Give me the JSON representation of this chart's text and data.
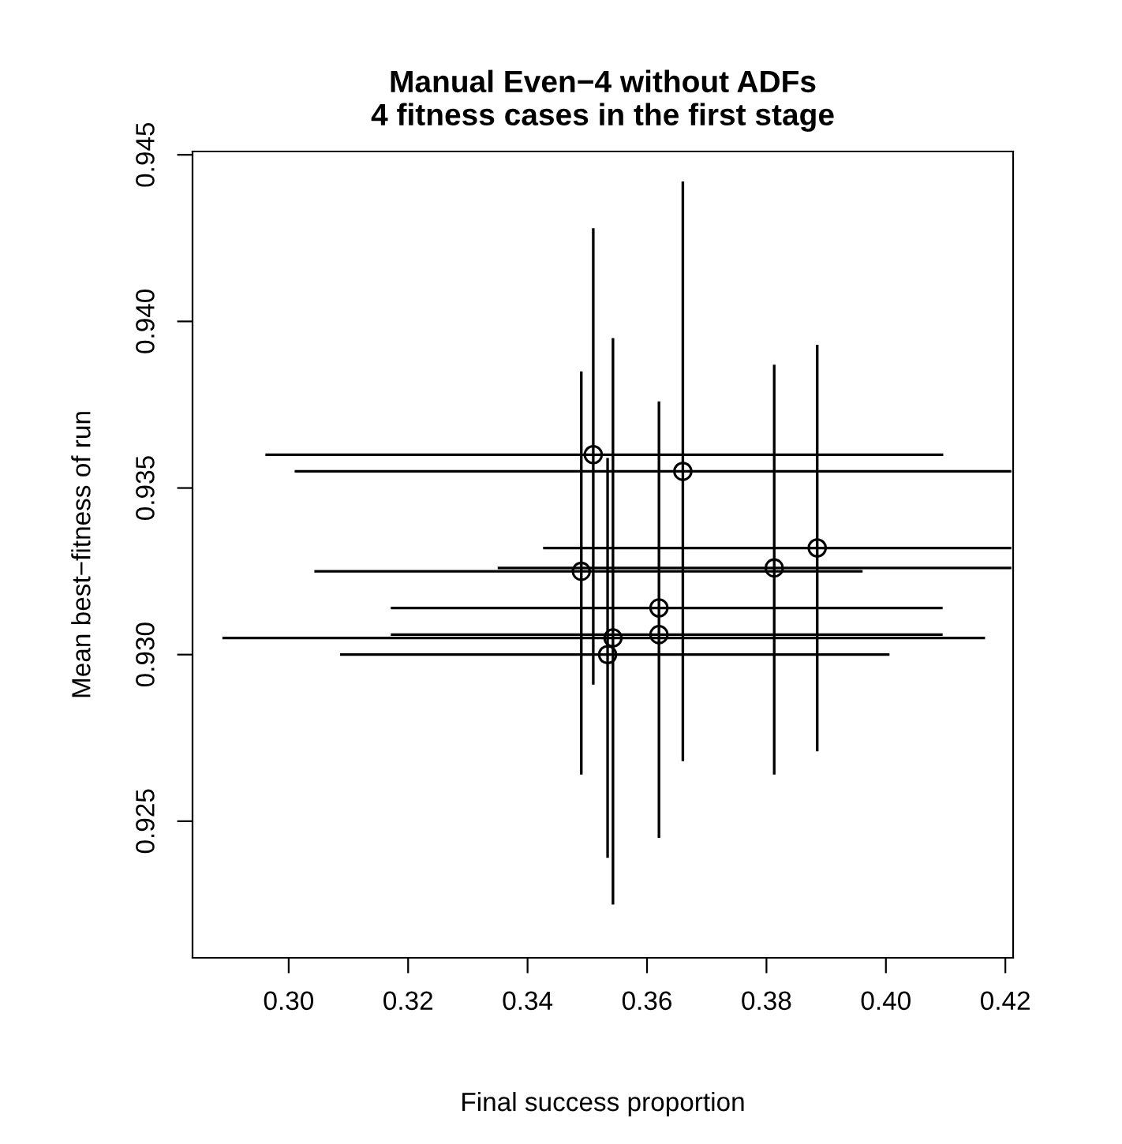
{
  "chart_data": {
    "type": "scatter",
    "title": "Manual Even−4 without ADFs\n4 fitness cases in the first stage",
    "xlabel": "Final success proportion",
    "ylabel": "Mean best−fitness of run",
    "x": [
      0.351,
      0.366,
      0.349,
      0.362,
      0.362,
      0.3543,
      0.3534,
      0.3813,
      0.3885
    ],
    "series": [
      {
        "color": "#000000",
        "values": [
          0.936,
          0.9355,
          0.9325,
          0.9314,
          0.9306,
          0.9305,
          0.93,
          0.9326,
          0.9332
        ],
        "errors": [
          [
            0.9291,
            0.9428
          ],
          [
            0.9268,
            0.9442
          ],
          [
            0.9264,
            0.9385
          ],
          [
            0.9245,
            0.9376
          ],
          null,
          [
            0.9225,
            0.9395
          ],
          [
            0.9239,
            0.9359
          ],
          [
            0.9264,
            0.9387
          ],
          [
            0.9271,
            0.9393
          ]
        ],
        "xerrors": [
          [
            0.2961,
            0.4096
          ],
          [
            0.301,
            0.421
          ],
          [
            0.3043,
            0.3961
          ],
          [
            0.3171,
            0.4095
          ],
          [
            0.3171,
            0.4095
          ],
          [
            0.2889,
            0.4166
          ],
          [
            0.3086,
            0.4006
          ],
          [
            0.335,
            0.421
          ],
          [
            0.3426,
            0.421
          ]
        ]
      }
    ],
    "xlim": [
      0.2839,
      0.4213
    ],
    "ylim": [
      0.9209,
      0.9451
    ],
    "xticks": [
      {
        "value": 0.3,
        "label": "0.30"
      },
      0.32,
      0.34,
      0.36,
      0.38,
      {
        "value": 0.4,
        "label": "0.40"
      },
      0.42
    ],
    "yticks": [
      {
        "value": 0.925,
        "label": "0.925"
      },
      {
        "value": 0.93,
        "label": "0.930"
      },
      {
        "value": 0.935,
        "label": "0.935"
      },
      {
        "value": 0.94,
        "label": "0.940"
      },
      {
        "value": 0.945,
        "label": "0.945"
      }
    ],
    "marker": "circle",
    "grid": false
  }
}
